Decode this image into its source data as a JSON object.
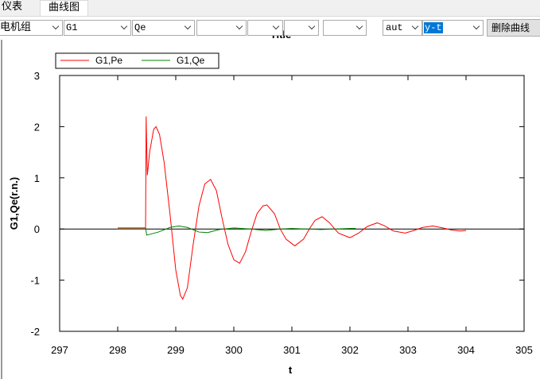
{
  "tabs": [
    "仪表",
    "曲线图"
  ],
  "toolbar": {
    "generator": "发电机组",
    "device": "G1",
    "variable": "Qe",
    "scale": "aut",
    "mode": "y-t",
    "button": "删除曲线"
  },
  "chart_data": {
    "type": "line",
    "title": "Title",
    "x_label": "t",
    "y_label": "G1,Qe(r.n.)",
    "xlim": [
      297,
      305
    ],
    "ylim": [
      -2,
      3
    ],
    "xticks": [
      297,
      298,
      299,
      300,
      301,
      302,
      303,
      304,
      305
    ],
    "yticks": [
      -2,
      -1,
      0,
      1,
      2,
      3
    ],
    "series": [
      {
        "name": "G1,Pe",
        "color": "#ff0000",
        "x": [
          298.0,
          298.48,
          298.49,
          298.5,
          298.51,
          298.55,
          298.62,
          298.66,
          298.72,
          298.8,
          298.9,
          299.0,
          299.08,
          299.12,
          299.2,
          299.3,
          299.4,
          299.5,
          299.6,
          299.7,
          299.8,
          299.9,
          300.0,
          300.1,
          300.2,
          300.3,
          300.4,
          300.5,
          300.57,
          300.7,
          300.8,
          300.9,
          301.05,
          301.2,
          301.3,
          301.4,
          301.52,
          301.65,
          301.8,
          302.0,
          302.15,
          302.3,
          302.47,
          302.6,
          302.75,
          302.95,
          303.1,
          303.25,
          303.43,
          303.6,
          303.75,
          303.9,
          304.0
        ],
        "values": [
          0,
          0,
          2.2,
          1.6,
          1.05,
          1.5,
          1.95,
          2.0,
          1.85,
          1.3,
          0.3,
          -0.8,
          -1.3,
          -1.37,
          -1.15,
          -0.3,
          0.45,
          0.88,
          0.97,
          0.75,
          0.2,
          -0.3,
          -0.6,
          -0.67,
          -0.45,
          -0.05,
          0.3,
          0.45,
          0.47,
          0.3,
          0.0,
          -0.2,
          -0.33,
          -0.2,
          0.0,
          0.17,
          0.24,
          0.12,
          -0.08,
          -0.17,
          -0.08,
          0.05,
          0.12,
          0.06,
          -0.04,
          -0.08,
          -0.03,
          0.03,
          0.06,
          0.02,
          -0.02,
          -0.04,
          -0.03
        ]
      },
      {
        "name": "G1,Qe",
        "color": "#008000",
        "x": [
          298.0,
          298.48,
          298.5,
          298.7,
          298.9,
          299.05,
          299.2,
          299.4,
          299.55,
          299.75,
          300.0,
          300.3,
          300.55,
          300.8,
          301.0,
          301.5,
          302.0,
          302.1
        ],
        "values": [
          0.02,
          0.02,
          -0.12,
          -0.06,
          0.03,
          0.06,
          0.03,
          -0.06,
          -0.07,
          -0.01,
          0.02,
          0.0,
          -0.03,
          0.0,
          0.01,
          -0.01,
          0.01,
          0.01
        ]
      }
    ]
  }
}
